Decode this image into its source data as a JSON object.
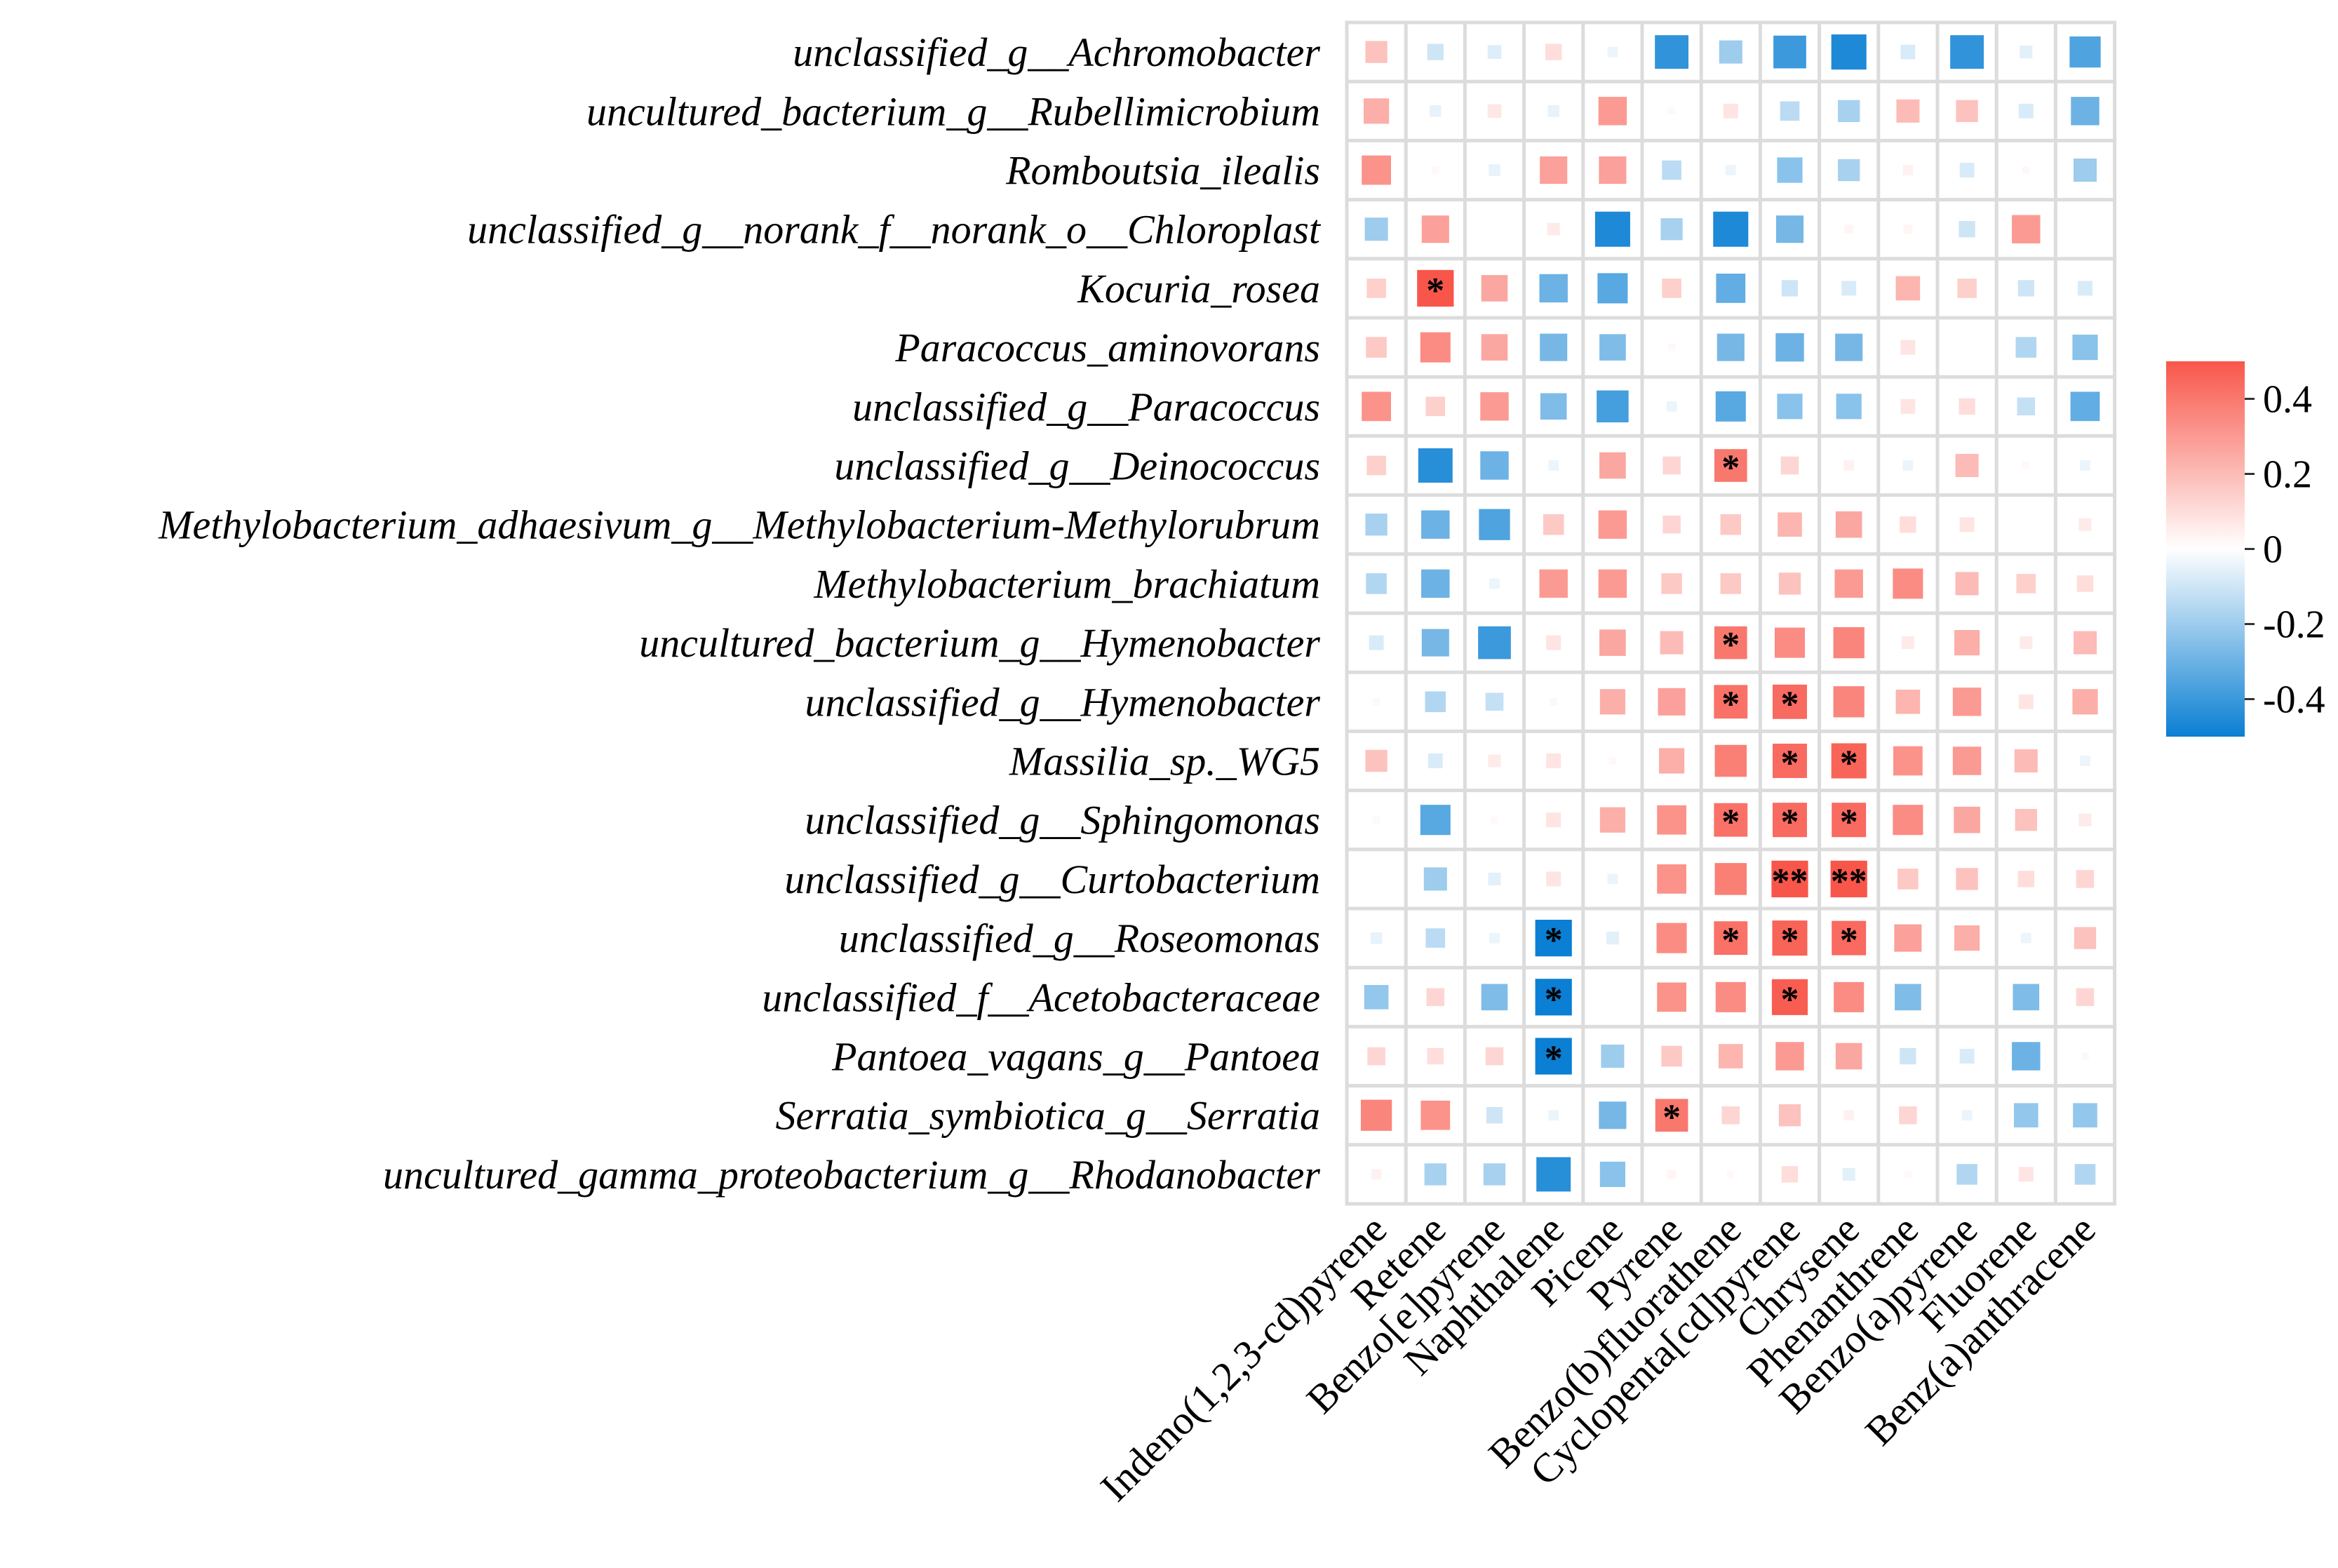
{
  "chart_data": {
    "type": "heatmap",
    "title": "",
    "xlabel": "",
    "ylabel": "",
    "grid": true,
    "legend_position": "right",
    "colors": {
      "negative": "#0a7fd3",
      "neutral": "#ffffff",
      "positive": "#f8564a",
      "grid": "#dcdcdc",
      "star": "#000000"
    },
    "rows": [
      "unclassified_g__Achromobacter",
      "uncultured_bacterium_g__Rubellimicrobium",
      "Romboutsia_ilealis",
      "unclassified_g__norank_f__norank_o__Chloroplast",
      "Kocuria_rosea",
      "Paracoccus_aminovorans",
      "unclassified_g__Paracoccus",
      "unclassified_g__Deinococcus",
      "Methylobacterium_adhaesivum_g__Methylobacterium-Methylorubrum",
      "Methylobacterium_brachiatum",
      "uncultured_bacterium_g__Hymenobacter",
      "unclassified_g__Hymenobacter",
      "Massilia_sp._WG5",
      "unclassified_g__Sphingomonas",
      "unclassified_g__Curtobacterium",
      "unclassified_g__Roseomonas",
      "unclassified_f__Acetobacteraceae",
      "Pantoea_vagans_g__Pantoea",
      "Serratia_symbiotica_g__Serratia",
      "uncultured_gamma_proteobacterium_g__Rhodanobacter"
    ],
    "columns": [
      "Indeno(1,2,3-cd)pyrene",
      "Retene",
      "Benzo[e]pyrene",
      "Naphthalene",
      "Picene",
      "Pyrene",
      "Benzo(b)fluorathene",
      "Cyclopenta[cd]pyrene",
      "Chrysene",
      "Phenanthrene",
      "Benzo(a)pyrene",
      "Fluorene",
      "Benz(a)anthracene"
    ],
    "values": [
      [
        0.18,
        -0.1,
        -0.07,
        0.1,
        -0.04,
        -0.42,
        -0.2,
        -0.4,
        -0.46,
        -0.08,
        -0.42,
        -0.06,
        -0.36
      ],
      [
        0.24,
        -0.05,
        0.07,
        -0.05,
        0.3,
        0.02,
        0.08,
        -0.14,
        -0.18,
        0.2,
        0.18,
        -0.08,
        -0.3
      ],
      [
        0.32,
        0.02,
        -0.05,
        0.28,
        0.28,
        -0.14,
        -0.04,
        -0.24,
        -0.18,
        0.04,
        -0.08,
        0.02,
        -0.2
      ],
      [
        -0.2,
        0.28,
        0.0,
        0.06,
        -0.46,
        -0.18,
        -0.46,
        -0.28,
        0.03,
        0.03,
        -0.1,
        0.3,
        0.0
      ],
      [
        0.14,
        0.5,
        0.26,
        -0.3,
        -0.34,
        0.14,
        -0.32,
        -0.1,
        -0.08,
        0.22,
        0.14,
        -0.1,
        -0.08
      ],
      [
        0.16,
        0.34,
        0.26,
        -0.28,
        -0.26,
        0.02,
        -0.28,
        -0.3,
        -0.28,
        0.08,
        0.0,
        -0.16,
        -0.24
      ],
      [
        0.32,
        0.14,
        0.3,
        -0.26,
        -0.38,
        -0.04,
        -0.34,
        -0.24,
        -0.24,
        0.08,
        0.1,
        -0.12,
        -0.32
      ],
      [
        0.14,
        -0.44,
        -0.3,
        -0.04,
        0.26,
        0.12,
        0.4,
        0.12,
        0.04,
        -0.04,
        0.2,
        0.02,
        -0.04
      ],
      [
        -0.18,
        -0.3,
        -0.36,
        0.16,
        0.3,
        0.12,
        0.16,
        0.22,
        0.26,
        0.1,
        0.08,
        0.0,
        0.06
      ],
      [
        -0.16,
        -0.3,
        -0.04,
        0.3,
        0.3,
        0.16,
        0.16,
        0.18,
        0.3,
        0.34,
        0.2,
        0.14,
        0.1
      ],
      [
        -0.08,
        -0.28,
        -0.4,
        0.08,
        0.26,
        0.2,
        0.4,
        0.34,
        0.36,
        0.06,
        0.24,
        0.06,
        0.2
      ],
      [
        0.02,
        -0.16,
        -0.12,
        -0.02,
        0.24,
        0.28,
        0.42,
        0.44,
        0.36,
        0.22,
        0.3,
        0.08,
        0.24
      ],
      [
        0.18,
        -0.08,
        0.06,
        0.08,
        0.02,
        0.24,
        0.38,
        0.44,
        0.46,
        0.32,
        0.3,
        0.2,
        -0.04
      ],
      [
        0.02,
        -0.34,
        0.02,
        0.08,
        0.24,
        0.32,
        0.42,
        0.44,
        0.44,
        0.34,
        0.26,
        0.18,
        0.06
      ],
      [
        0.0,
        -0.2,
        -0.06,
        0.08,
        -0.04,
        0.32,
        0.38,
        0.52,
        0.56,
        0.16,
        0.18,
        0.1,
        0.12
      ],
      [
        -0.05,
        -0.14,
        -0.04,
        -0.5,
        -0.06,
        0.34,
        0.42,
        0.46,
        0.44,
        0.28,
        0.24,
        -0.04,
        0.18
      ],
      [
        -0.22,
        0.12,
        -0.26,
        -0.5,
        0.0,
        0.32,
        0.34,
        0.48,
        0.34,
        -0.26,
        0.0,
        -0.26,
        0.12
      ],
      [
        0.12,
        0.1,
        0.12,
        -0.5,
        -0.2,
        0.16,
        0.22,
        0.3,
        0.26,
        -0.1,
        -0.08,
        -0.3,
        0.02
      ],
      [
        0.36,
        0.32,
        -0.1,
        -0.04,
        -0.28,
        0.4,
        0.12,
        0.18,
        0.04,
        0.12,
        -0.04,
        -0.22,
        -0.22
      ],
      [
        0.04,
        -0.18,
        -0.18,
        -0.44,
        -0.24,
        0.03,
        0.02,
        0.1,
        -0.06,
        0.02,
        -0.16,
        0.08,
        -0.16
      ]
    ],
    "significance": [
      [
        "",
        "",
        "",
        "",
        "",
        "",
        "",
        "",
        "",
        "",
        "",
        "",
        ""
      ],
      [
        "",
        "",
        "",
        "",
        "",
        "",
        "",
        "",
        "",
        "",
        "",
        "",
        ""
      ],
      [
        "",
        "",
        "",
        "",
        "",
        "",
        "",
        "",
        "",
        "",
        "",
        "",
        ""
      ],
      [
        "",
        "",
        "",
        "",
        "",
        "",
        "",
        "",
        "",
        "",
        "",
        "",
        ""
      ],
      [
        "",
        "*",
        "",
        "",
        "",
        "",
        "",
        "",
        "",
        "",
        "",
        "",
        ""
      ],
      [
        "",
        "",
        "",
        "",
        "",
        "",
        "",
        "",
        "",
        "",
        "",
        "",
        ""
      ],
      [
        "",
        "",
        "",
        "",
        "",
        "",
        "",
        "",
        "",
        "",
        "",
        "",
        ""
      ],
      [
        "",
        "",
        "",
        "",
        "",
        "",
        "*",
        "",
        "",
        "",
        "",
        "",
        ""
      ],
      [
        "",
        "",
        "",
        "",
        "",
        "",
        "",
        "",
        "",
        "",
        "",
        "",
        ""
      ],
      [
        "",
        "",
        "",
        "",
        "",
        "",
        "",
        "",
        "",
        "",
        "",
        "",
        ""
      ],
      [
        "",
        "",
        "",
        "",
        "",
        "",
        "*",
        "",
        "",
        "",
        "",
        "",
        ""
      ],
      [
        "",
        "",
        "",
        "",
        "",
        "",
        "*",
        "*",
        "",
        "",
        "",
        "",
        ""
      ],
      [
        "",
        "",
        "",
        "",
        "",
        "",
        "",
        "*",
        "*",
        "",
        "",
        "",
        ""
      ],
      [
        "",
        "",
        "",
        "",
        "",
        "",
        "*",
        "*",
        "*",
        "",
        "",
        "",
        ""
      ],
      [
        "",
        "",
        "",
        "",
        "",
        "",
        "",
        "**",
        "**",
        "",
        "",
        "",
        ""
      ],
      [
        "",
        "",
        "",
        "*",
        "",
        "",
        "*",
        "*",
        "*",
        "",
        "",
        "",
        ""
      ],
      [
        "",
        "",
        "",
        "*",
        "",
        "",
        "",
        "*",
        "",
        "",
        "",
        "",
        ""
      ],
      [
        "",
        "",
        "",
        "*",
        "",
        "",
        "",
        "",
        "",
        "",
        "",
        "",
        ""
      ],
      [
        "",
        "",
        "",
        "",
        "",
        "*",
        "",
        "",
        "",
        "",
        "",
        "",
        ""
      ],
      [
        "",
        "",
        "",
        "",
        "",
        "",
        "",
        "",
        "",
        "",
        "",
        "",
        ""
      ]
    ],
    "value_range": [
      -0.5,
      0.5
    ],
    "colorbar": {
      "ticks": [
        0.4,
        0.2,
        0,
        -0.2,
        -0.4
      ],
      "tick_labels": [
        "0.4",
        "0.2",
        "0",
        "-0.2",
        "-0.4"
      ]
    }
  }
}
